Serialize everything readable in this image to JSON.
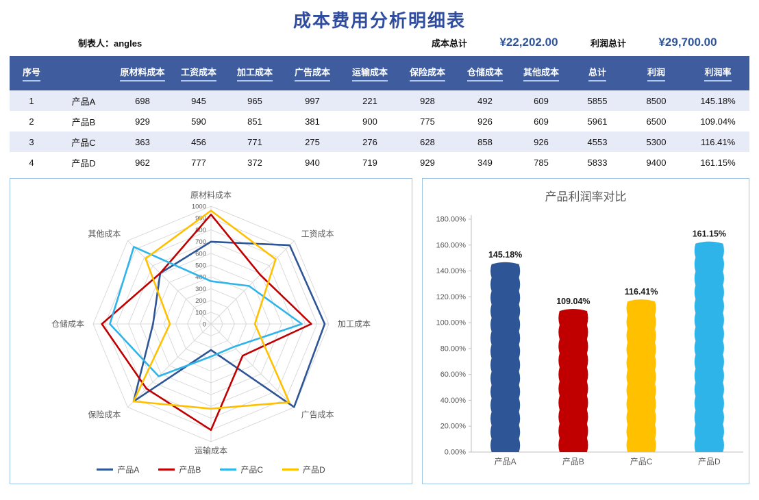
{
  "page": {
    "title": "成本费用分析明细表",
    "maker_label": "制表人：angles",
    "cost_total_label": "成本总计",
    "cost_total_value": "¥22,202.00",
    "profit_total_label": "利润总计",
    "profit_total_value": "¥29,700.00"
  },
  "table": {
    "headers": [
      "序号",
      "",
      "原材料成本",
      "工资成本",
      "加工成本",
      "广告成本",
      "运输成本",
      "保险成本",
      "仓储成本",
      "其他成本",
      "总计",
      "利润",
      "利润率"
    ],
    "rows": [
      {
        "no": "1",
        "name": "产品A",
        "values": [
          "698",
          "945",
          "965",
          "997",
          "221",
          "928",
          "492",
          "609",
          "5855",
          "8500",
          "145.18%"
        ]
      },
      {
        "no": "2",
        "name": "产品B",
        "values": [
          "929",
          "590",
          "851",
          "381",
          "900",
          "775",
          "926",
          "609",
          "5961",
          "6500",
          "109.04%"
        ]
      },
      {
        "no": "3",
        "name": "产品C",
        "values": [
          "363",
          "456",
          "771",
          "275",
          "276",
          "628",
          "858",
          "926",
          "4553",
          "5300",
          "116.41%"
        ]
      },
      {
        "no": "4",
        "name": "产品D",
        "values": [
          "962",
          "777",
          "372",
          "940",
          "719",
          "929",
          "349",
          "785",
          "5833",
          "9400",
          "161.15%"
        ]
      }
    ]
  },
  "chart_data": [
    {
      "type": "radar",
      "axes": [
        "原材料成本",
        "工资成本",
        "加工成本",
        "广告成本",
        "运输成本",
        "保险成本",
        "仓储成本",
        "其他成本"
      ],
      "rmax": 1000,
      "ring_step": 100,
      "legend_position": "bottom",
      "series": [
        {
          "name": "产品A",
          "color": "#2E5596",
          "values": [
            698,
            945,
            965,
            997,
            221,
            928,
            492,
            609
          ]
        },
        {
          "name": "产品B",
          "color": "#C00000",
          "values": [
            929,
            590,
            851,
            381,
            900,
            775,
            926,
            609
          ]
        },
        {
          "name": "产品C",
          "color": "#2FB4E9",
          "values": [
            363,
            456,
            771,
            275,
            276,
            628,
            858,
            926
          ]
        },
        {
          "name": "产品D",
          "color": "#FFC000",
          "values": [
            962,
            777,
            372,
            940,
            719,
            929,
            349,
            785
          ]
        }
      ]
    },
    {
      "type": "bar",
      "title": "产品利润率对比",
      "categories": [
        "产品A",
        "产品B",
        "产品C",
        "产品D"
      ],
      "values": [
        145.18,
        109.04,
        116.41,
        161.15
      ],
      "labels": [
        "145.18%",
        "109.04%",
        "116.41%",
        "161.15%"
      ],
      "colors": [
        "#2E5596",
        "#C00000",
        "#FFC000",
        "#2FB4E9"
      ],
      "ylim": [
        0,
        180
      ],
      "ytick_step": 20,
      "grid": false
    }
  ],
  "colors": {
    "title": "#2F4C9F",
    "header_bg": "#3E5C9E",
    "row_alt": "#E7EAF7",
    "accent_value": "#2F5597",
    "panel_border": "#9CC2E5",
    "grid_line": "#DADADA",
    "axis_text": "#595959"
  }
}
